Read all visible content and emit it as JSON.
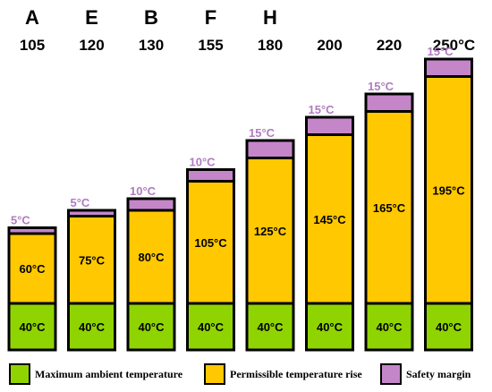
{
  "colors": {
    "ambient": "#8fd400",
    "rise": "#ffc800",
    "margin": "#c586c9",
    "margin_text": "#b07cc0",
    "outline": "#000000"
  },
  "chart_data": {
    "type": "bar",
    "stacked": true,
    "classes": [
      "A",
      "E",
      "B",
      "F",
      "H",
      "",
      "",
      ""
    ],
    "categories": [
      "105",
      "120",
      "130",
      "155",
      "180",
      "200",
      "220",
      "250°C"
    ],
    "series": [
      {
        "name": "Maximum ambient temperature",
        "values": [
          40,
          40,
          40,
          40,
          40,
          40,
          40,
          40
        ],
        "labels": [
          "40°C",
          "40°C",
          "40°C",
          "40°C",
          "40°C",
          "40°C",
          "40°C",
          "40°C"
        ]
      },
      {
        "name": "Permissible temperature rise",
        "values": [
          60,
          75,
          80,
          105,
          125,
          145,
          165,
          195
        ],
        "labels": [
          "60°C",
          "75°C",
          "80°C",
          "105°C",
          "125°C",
          "145°C",
          "165°C",
          "195°C"
        ]
      },
      {
        "name": "Safety margin",
        "values": [
          5,
          5,
          10,
          10,
          15,
          15,
          15,
          15
        ],
        "labels": [
          "5°C",
          "5°C",
          "10°C",
          "10°C",
          "15°C",
          "15°C",
          "15°C",
          "15°C"
        ]
      }
    ]
  },
  "legend": [
    {
      "label": "Maximum ambient temperature",
      "color_key": "ambient"
    },
    {
      "label": "Permissible temperature rise",
      "color_key": "rise"
    },
    {
      "label": "Safety margin",
      "color_key": "margin"
    }
  ]
}
